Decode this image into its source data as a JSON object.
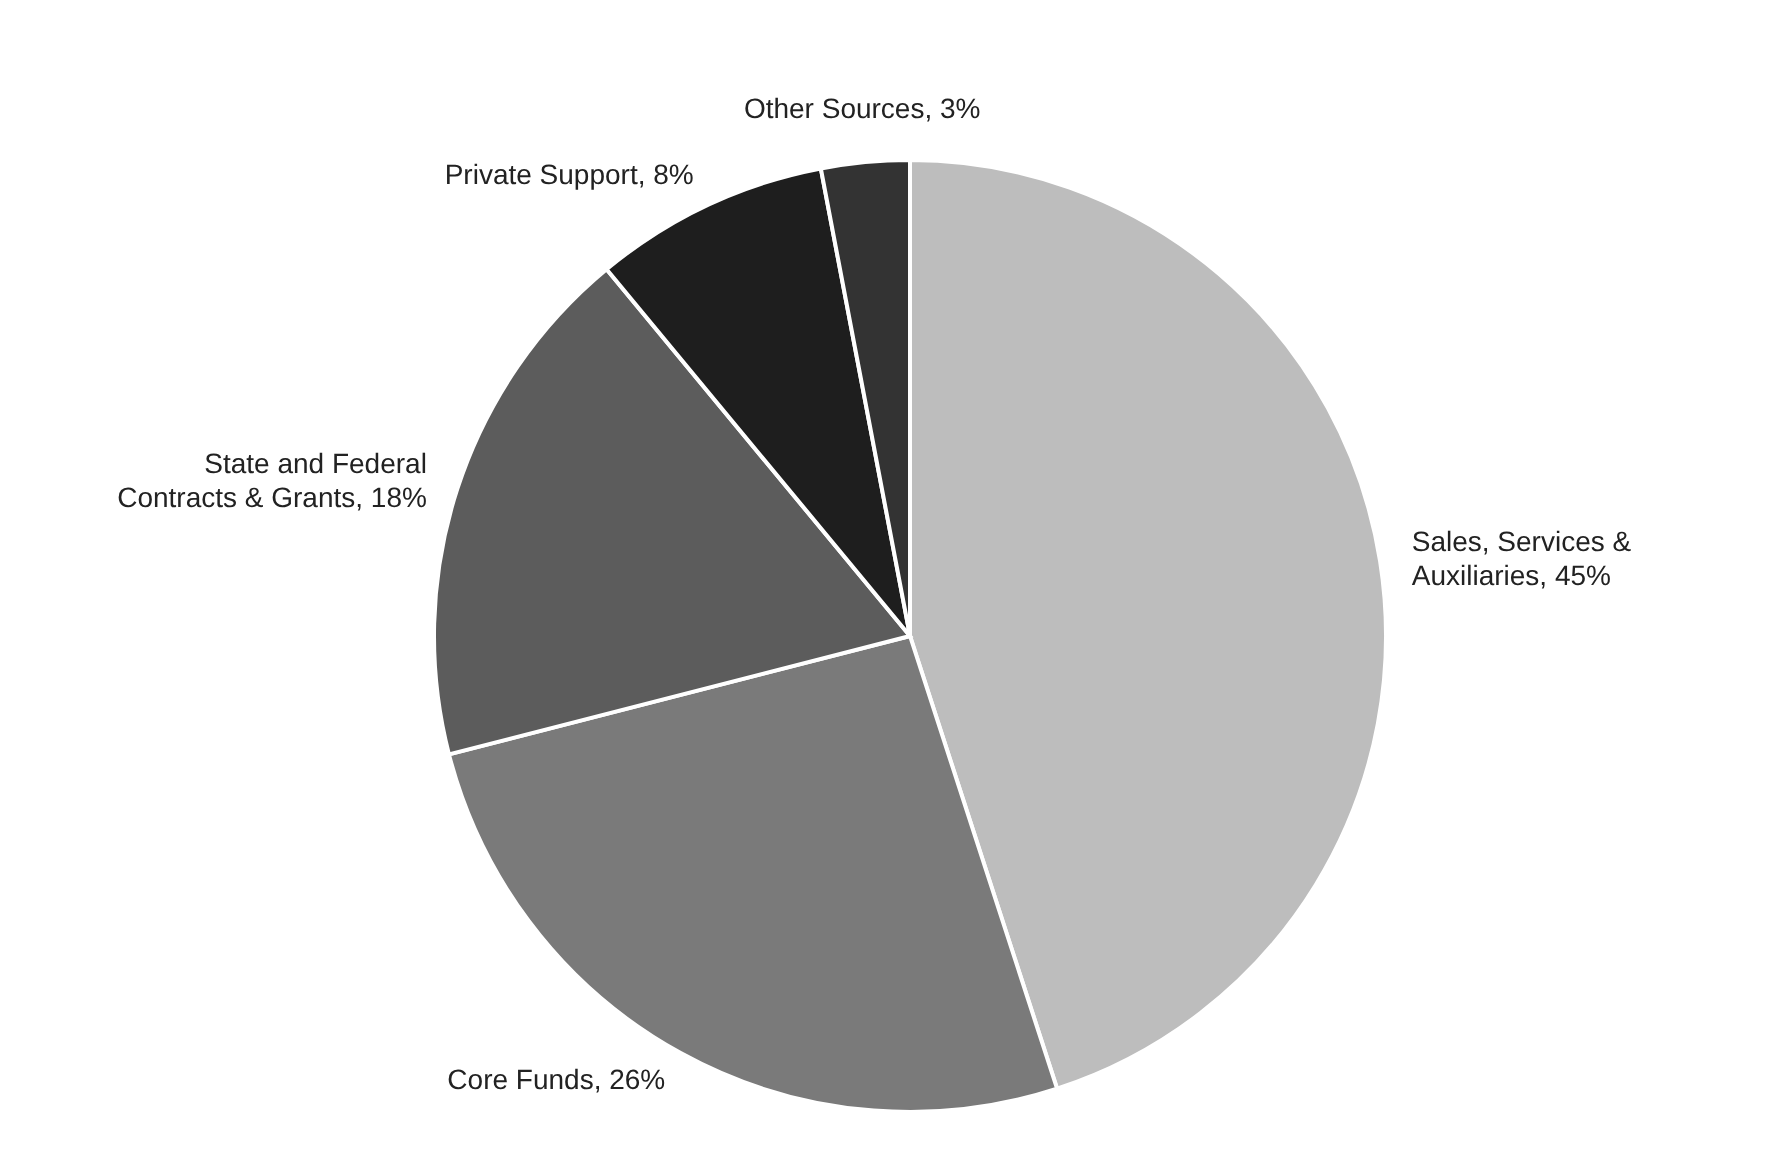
{
  "chart_data": {
    "type": "pie",
    "categories": [
      "Sales, Services & Auxiliaries",
      "Core Funds",
      "State and Federal Contracts & Grants",
      "Private Support",
      "Other Sources"
    ],
    "values": [
      45,
      26,
      18,
      8,
      3
    ],
    "colors": [
      "#bdbdbd",
      "#7a7a7a",
      "#5c5c5c",
      "#1e1e1e",
      "#333333"
    ],
    "value_labels": [
      "45%",
      "26%",
      "18%",
      "8%",
      "3%"
    ]
  }
}
